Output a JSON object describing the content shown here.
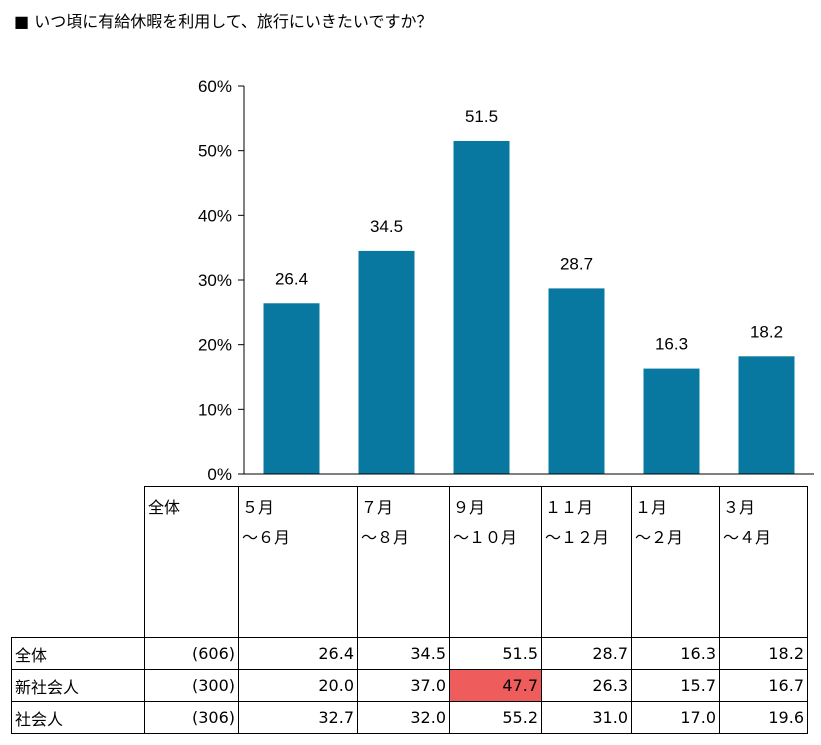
{
  "title": "■ いつ頃に有給休暇を利用して、旅行にいきたいですか？",
  "colors": {
    "bar": "#0878a1",
    "highlight": "#ee5c5c",
    "axis": "#000000"
  },
  "chart_data": {
    "type": "bar",
    "categories": [
      "5月〜6月",
      "7月〜8月",
      "9月〜10月",
      "11月〜12月",
      "1月〜2月",
      "3月〜4月"
    ],
    "values": [
      26.4,
      34.5,
      51.5,
      28.7,
      16.3,
      18.2
    ],
    "value_labels": [
      "26.4",
      "34.5",
      "51.5",
      "28.7",
      "16.3",
      "18.2"
    ],
    "ylim": [
      0,
      60
    ],
    "yticks": [
      "0%",
      "10%",
      "20%",
      "30%",
      "40%",
      "50%",
      "60%"
    ],
    "grid": false,
    "legend": "none"
  },
  "table": {
    "header": {
      "total_label": "全体",
      "columns": [
        [
          "５月",
          "〜６月"
        ],
        [
          "７月",
          "〜８月"
        ],
        [
          "９月",
          "〜１０月"
        ],
        [
          "１１月",
          "〜１２月"
        ],
        [
          "１月",
          "〜２月"
        ],
        [
          "３月",
          "〜４月"
        ]
      ]
    },
    "rows": [
      {
        "label": "全体",
        "n": "(606)",
        "values": [
          "26.4",
          "34.5",
          "51.5",
          "28.7",
          "16.3",
          "18.2"
        ]
      },
      {
        "label": "新社会人",
        "n": "(300)",
        "values": [
          "20.0",
          "37.0",
          "47.7",
          "26.3",
          "15.7",
          "16.7"
        ],
        "highlight_index": 2
      },
      {
        "label": "社会人",
        "n": "(306)",
        "values": [
          "32.7",
          "32.0",
          "55.2",
          "31.0",
          "17.0",
          "19.6"
        ]
      }
    ]
  }
}
